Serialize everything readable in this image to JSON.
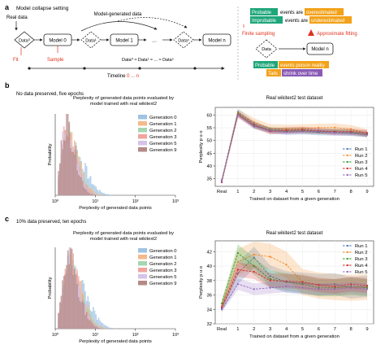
{
  "panel_a": {
    "letter": "a",
    "title": "Model collapse setting",
    "real_data_label": "Real data",
    "model_generated_label": "Model-generated data",
    "data0": "Data⁰",
    "model0": "Model 0",
    "data1": "Data¹",
    "model1": "Model 1",
    "ellipsis": "...",
    "datan": "Dataⁿ",
    "modeln": "Model n",
    "fit_label": "Fit",
    "sample_label": "Sample",
    "equation": "Data⁰ ≈ Data¹ ≈ ... ≈ Dataⁿ",
    "timeline_prefix": "Timeline ",
    "timeline_range": "0 ... n",
    "right": {
      "probable": "Probable",
      "events_are1": "events are",
      "overestimated": "overestimated",
      "improbable": "Improbable",
      "events_are2": "events are",
      "underestimated": "underestimated",
      "finite_sampling": "Finite sampling",
      "approx_fitting": "Approximate fitting",
      "data_label": "Data",
      "model_label": "Model n",
      "probable2": "Probable",
      "poison": "events poison reality",
      "tails": "Tails",
      "shrink": "shrink over time"
    },
    "colors": {
      "red": "#e0311f",
      "green": "#1fa67a",
      "orange": "#f2a21b",
      "purple": "#8a5bb5"
    }
  },
  "panel_b": {
    "letter": "b",
    "caption": "No data preserved, five epochs"
  },
  "panel_c": {
    "letter": "c",
    "caption": "10% data preserved, ten epochs"
  },
  "chart_data": [
    {
      "id": "b_hist",
      "type": "histogram",
      "title_line1": "Perplexity of generated data points evaluated by",
      "title_line2": "model trained with real wikitext2",
      "xlabel": "Perplexity of generated data points",
      "ylabel": "Probability",
      "xscale": "log",
      "xlim": [
        1,
        1000
      ],
      "xtick_labels": [
        "10⁰",
        "10¹",
        "10²",
        "10³"
      ],
      "legend_placement": "top-right",
      "series": [
        {
          "name": "Generation 0",
          "color": "#9ec3e3",
          "peak": 2.4,
          "width": 0.33,
          "height": 0.6
        },
        {
          "name": "Generation 1",
          "color": "#f5b98a",
          "peak": 2.0,
          "width": 0.28,
          "height": 0.72
        },
        {
          "name": "Generation 2",
          "color": "#a6d6b0",
          "peak": 1.9,
          "width": 0.26,
          "height": 0.78
        },
        {
          "name": "Generation 3",
          "color": "#f2a49d",
          "peak": 1.85,
          "width": 0.25,
          "height": 0.83
        },
        {
          "name": "Generation 5",
          "color": "#d6c3e8",
          "peak": 1.8,
          "width": 0.24,
          "height": 0.88
        },
        {
          "name": "Generation 9",
          "color": "#b58a86",
          "peak": 1.75,
          "width": 0.23,
          "height": 0.95
        }
      ]
    },
    {
      "id": "b_line",
      "type": "line",
      "title": "Real wikitext2 test dataset",
      "xlabel": "Trained on dataset from a given generation",
      "ylabel": "Perplexity p u o",
      "categories": [
        "Real",
        "1",
        "2",
        "3",
        "4",
        "5",
        "6",
        "7",
        "8",
        "9"
      ],
      "ylim": [
        32,
        63
      ],
      "yticks": [
        35,
        40,
        45,
        50,
        55,
        60
      ],
      "legend_placement": "bottom-right",
      "series": [
        {
          "name": "Run 1",
          "color": "#3b74b8",
          "values": [
            34.5,
            61.2,
            56.5,
            53.8,
            53.5,
            53.6,
            53.2,
            53.1,
            53.0,
            52.6
          ],
          "band": 1.2
        },
        {
          "name": "Run 2",
          "color": "#f28c28",
          "values": [
            34.0,
            60.8,
            57.2,
            54.8,
            54.6,
            54.8,
            55.0,
            55.1,
            54.5,
            52.8
          ],
          "band": 1.6
        },
        {
          "name": "Run 3",
          "color": "#2ca02c",
          "values": [
            33.8,
            60.5,
            55.8,
            54.2,
            53.9,
            54.0,
            53.5,
            53.6,
            53.2,
            52.4
          ],
          "band": 1.0
        },
        {
          "name": "Run 4",
          "color": "#d62728",
          "values": [
            33.6,
            60.2,
            56.0,
            53.6,
            54.0,
            54.2,
            53.8,
            53.4,
            53.5,
            53.0
          ],
          "band": 1.2
        },
        {
          "name": "Run 5",
          "color": "#9467bd",
          "values": [
            33.9,
            60.0,
            55.5,
            54.0,
            53.2,
            53.5,
            53.6,
            53.0,
            52.8,
            52.2
          ],
          "band": 1.0
        }
      ]
    },
    {
      "id": "c_hist",
      "type": "histogram",
      "title_line1": "Perplexity of generated data points evaluated by",
      "title_line2": "model trained with real wikitext2",
      "xlabel": "Perplexity of generated data points",
      "ylabel": "Probability",
      "xscale": "log",
      "xlim": [
        1,
        1000
      ],
      "xtick_labels": [
        "10⁰",
        "10¹",
        "10²",
        "10³"
      ],
      "legend_placement": "top-right",
      "series": [
        {
          "name": "Generation 0",
          "color": "#9ec3e3",
          "peak": 2.6,
          "width": 0.34,
          "height": 0.72
        },
        {
          "name": "Generation 1",
          "color": "#f5b98a",
          "peak": 2.3,
          "width": 0.3,
          "height": 0.78
        },
        {
          "name": "Generation 2",
          "color": "#a6d6b0",
          "peak": 2.2,
          "width": 0.29,
          "height": 0.82
        },
        {
          "name": "Generation 3",
          "color": "#f2a49d",
          "peak": 2.1,
          "width": 0.28,
          "height": 0.85
        },
        {
          "name": "Generation 5",
          "color": "#d6c3e8",
          "peak": 2.05,
          "width": 0.27,
          "height": 0.88
        },
        {
          "name": "Generation 9",
          "color": "#b58a86",
          "peak": 2.0,
          "width": 0.26,
          "height": 0.93
        }
      ]
    },
    {
      "id": "c_line",
      "type": "line",
      "title": "Real wikitext2 test dataset",
      "xlabel": "Trained on dataset from a given generation",
      "ylabel": "Perplexity p u o",
      "categories": [
        "Real",
        "1",
        "2",
        "3",
        "4",
        "5",
        "6",
        "7",
        "8",
        "9"
      ],
      "ylim": [
        32,
        43.5
      ],
      "yticks": [
        32,
        34,
        36,
        38,
        40,
        42
      ],
      "legend_placement": "top-right",
      "series": [
        {
          "name": "Run 1",
          "color": "#3b74b8",
          "values": [
            34.2,
            39.0,
            41.2,
            38.6,
            37.8,
            37.6,
            37.4,
            37.5,
            37.0,
            37.2
          ],
          "band": 1.5
        },
        {
          "name": "Run 2",
          "color": "#f28c28",
          "values": [
            34.5,
            40.6,
            41.6,
            41.3,
            40.2,
            37.8,
            37.3,
            37.1,
            37.0,
            37.1
          ],
          "band": 1.8
        },
        {
          "name": "Run 3",
          "color": "#2ca02c",
          "values": [
            34.8,
            41.8,
            40.0,
            38.2,
            37.8,
            37.5,
            37.0,
            37.0,
            37.2,
            37.0
          ],
          "band": 1.2
        },
        {
          "name": "Run 4",
          "color": "#d62728",
          "values": [
            34.3,
            39.5,
            39.2,
            38.0,
            37.9,
            37.8,
            37.4,
            37.2,
            37.5,
            37.3
          ],
          "band": 1.0
        },
        {
          "name": "Run 5",
          "color": "#9467bd",
          "values": [
            34.0,
            37.5,
            36.8,
            37.0,
            37.2,
            37.0,
            36.8,
            36.8,
            37.0,
            36.8
          ],
          "band": 0.8
        }
      ]
    }
  ]
}
